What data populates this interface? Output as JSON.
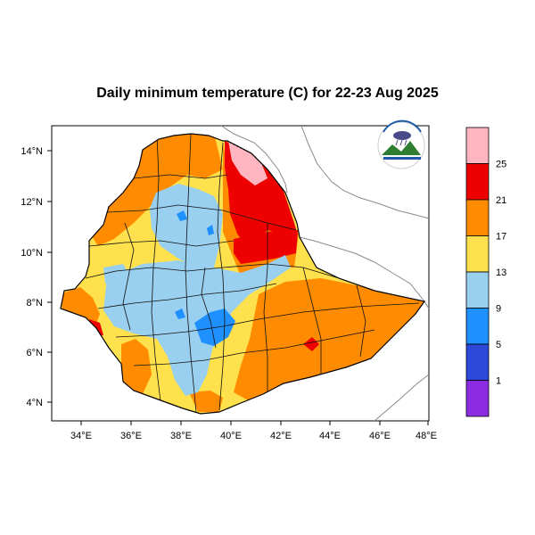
{
  "map": {
    "title": "Daily minimum temperature (C) for 22-23 Aug 2025",
    "lat_ticks": [
      "14°N",
      "12°N",
      "10°N",
      "8°N",
      "6°N",
      "4°N"
    ],
    "lon_ticks": [
      "34°E",
      "36°E",
      "38°E",
      "40°E",
      "42°E",
      "44°E",
      "46°E",
      "48°E"
    ],
    "logo_icon": "ethiopian-meteorology-institute-logo-icon"
  },
  "legend": {
    "labels": [
      "25",
      "21",
      "17",
      "13",
      "9",
      "5",
      "1"
    ],
    "colors": [
      "#ffb6c1",
      "#ee0000",
      "#ff8c00",
      "#ffe14d",
      "#99cfef",
      "#1e90ff",
      "#2c49d9",
      "#8b2be2"
    ]
  },
  "palette": {
    "red": "#ee0000",
    "orange": "#ff8c00",
    "yellow": "#ffe14d",
    "light_blue": "#99cfef",
    "blue": "#1e90ff",
    "pink": "#ffb6c1"
  }
}
